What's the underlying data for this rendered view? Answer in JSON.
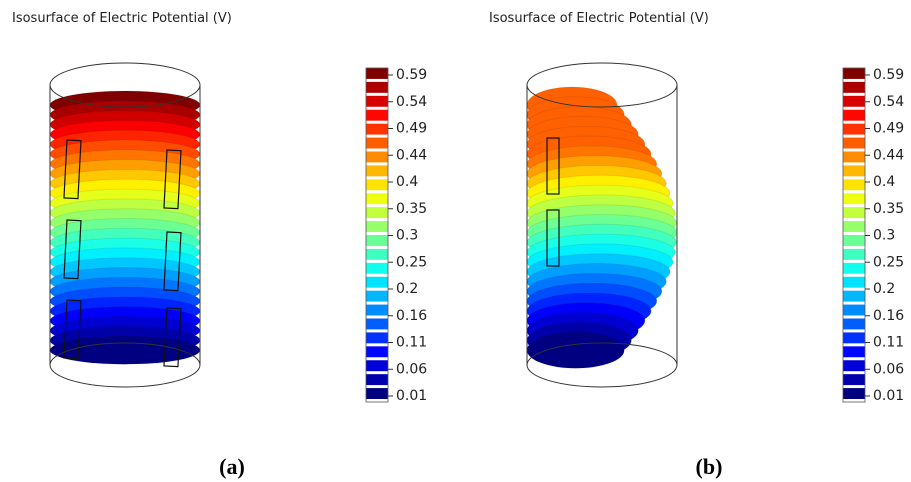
{
  "panels": [
    {
      "title": "Isosurface of Electric Potential (V)",
      "colorbar_ticks": [
        "0.59",
        "0.54",
        "0.49",
        "0.44",
        "0.4",
        "0.35",
        "0.3",
        "0.25",
        "0.2",
        "0.16",
        "0.11",
        "0.06",
        "0.01"
      ],
      "caption": "(a)"
    },
    {
      "title": "Isosurface of Electric Potential (V)",
      "colorbar_ticks": [
        "0.59",
        "0.54",
        "0.49",
        "0.44",
        "0.4",
        "0.35",
        "0.3",
        "0.25",
        "0.2",
        "0.16",
        "0.11",
        "0.06",
        "0.01"
      ],
      "caption": "(b)"
    }
  ]
}
